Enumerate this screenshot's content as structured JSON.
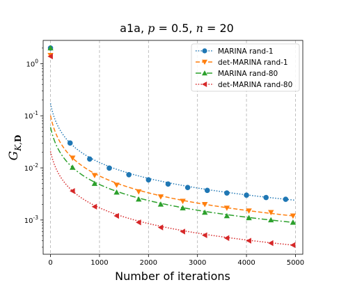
{
  "chart_data": {
    "type": "line",
    "title": "a1a, p = 0.5, n = 20",
    "xlabel": "Number of iterations",
    "ylabel": "G_{K,D}",
    "x_scale": "linear",
    "y_scale": "log",
    "xlim": [
      -150,
      5150
    ],
    "ylim": [
      0.00022,
      2.8
    ],
    "x_ticks": [
      0,
      1000,
      2000,
      3000,
      4000,
      5000
    ],
    "x_tick_labels": [
      "0",
      "1000",
      "2000",
      "3000",
      "4000",
      "5000"
    ],
    "y_ticks": [
      0.001,
      0.01,
      0.1,
      1
    ],
    "y_tick_labels": [
      "10^{-3}",
      "10^{-2}",
      "10^{-1}",
      "10^{0}"
    ],
    "grid": "vertical dashed at x ticks",
    "legend_position": "top-right",
    "series": [
      {
        "name": "MARINA rand-1",
        "color": "#1f77b4",
        "linestyle": "dotted",
        "marker": "circle",
        "x": [
          0,
          400,
          800,
          1200,
          1600,
          2000,
          2400,
          2800,
          3200,
          3600,
          4000,
          4400,
          4800
        ],
        "values": [
          2.0,
          0.03,
          0.0148,
          0.0099,
          0.0074,
          0.0059,
          0.0049,
          0.0042,
          0.0037,
          0.0033,
          0.003,
          0.0027,
          0.0025
        ]
      },
      {
        "name": "det-MARINA rand-1",
        "color": "#ff7f0e",
        "linestyle": "dashed",
        "marker": "triangle-down",
        "x": [
          0,
          450,
          900,
          1350,
          1800,
          2250,
          2700,
          3150,
          3600,
          4050,
          4500,
          4950
        ],
        "values": [
          1.45,
          0.0155,
          0.0072,
          0.0047,
          0.0035,
          0.0028,
          0.0023,
          0.002,
          0.0017,
          0.0015,
          0.0014,
          0.0012
        ]
      },
      {
        "name": "MARINA rand-80",
        "color": "#2ca02c",
        "linestyle": "dashdot",
        "marker": "triangle-up",
        "x": [
          0,
          450,
          900,
          1350,
          1800,
          2250,
          2700,
          3150,
          3600,
          4050,
          4500,
          4950
        ],
        "values": [
          2.0,
          0.0102,
          0.005,
          0.0034,
          0.0025,
          0.002,
          0.0017,
          0.0014,
          0.0012,
          0.0011,
          0.001,
          0.0009
        ]
      },
      {
        "name": "det-MARINA rand-80",
        "color": "#d62728",
        "linestyle": "dotted",
        "marker": "triangle-left",
        "x": [
          0,
          450,
          900,
          1350,
          1800,
          2250,
          2700,
          3150,
          3600,
          4050,
          4500,
          4950
        ],
        "values": [
          1.38,
          0.0036,
          0.0018,
          0.0012,
          0.0009,
          0.00072,
          0.0006,
          0.00051,
          0.00045,
          0.0004,
          0.00036,
          0.00033
        ]
      }
    ]
  }
}
